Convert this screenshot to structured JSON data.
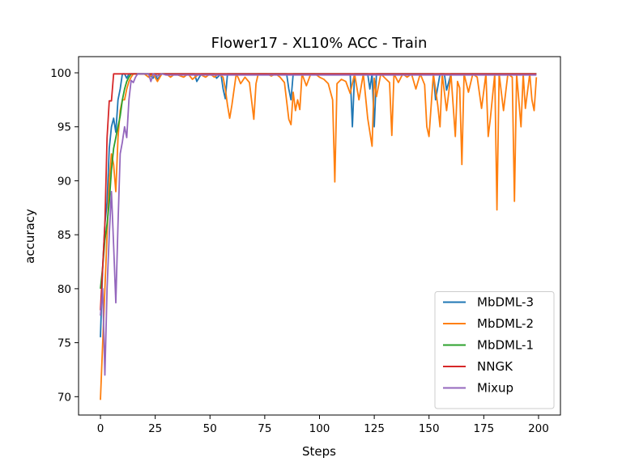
{
  "chart_data": {
    "type": "line",
    "title": "Flower17 - XL10% ACC - Train",
    "xlabel": "Steps",
    "ylabel": "accuracy",
    "xlim": [
      -10,
      210
    ],
    "ylim": [
      68.3,
      101.5
    ],
    "xticks": [
      0,
      25,
      50,
      75,
      100,
      125,
      150,
      175,
      200
    ],
    "yticks": [
      70,
      75,
      80,
      85,
      90,
      95,
      100
    ],
    "grid": false,
    "legend_position": "lower-right",
    "series": [
      {
        "name": "MbDML-3",
        "color": "#1f77b4",
        "x": [
          0,
          1,
          2,
          3,
          4,
          5,
          6,
          7,
          8,
          9,
          10,
          11,
          12,
          13,
          14,
          15,
          16,
          17,
          18,
          19,
          20,
          22,
          24,
          25,
          26,
          28,
          30,
          33,
          36,
          40,
          43,
          44,
          46,
          50,
          52,
          53,
          55,
          56,
          57,
          58,
          60,
          62,
          64,
          66,
          70,
          75,
          80,
          85,
          86,
          87,
          88,
          90,
          95,
          100,
          105,
          110,
          114,
          115,
          116,
          118,
          120,
          122,
          123,
          124,
          125,
          126,
          128,
          130,
          135,
          140,
          143,
          145,
          148,
          150,
          152,
          153,
          155,
          157,
          158,
          160,
          163,
          165,
          168,
          170,
          175,
          178,
          180,
          182,
          185,
          188,
          190,
          192,
          195,
          199
        ],
        "y": [
          75.5,
          82,
          86,
          88,
          93,
          95,
          95.8,
          94.5,
          97.5,
          98.5,
          99.9,
          99.9,
          99.5,
          99.9,
          99.9,
          99.9,
          99.9,
          99.9,
          99.9,
          99.9,
          99.9,
          99.9,
          99.5,
          99.9,
          99.4,
          99.9,
          99.9,
          99.9,
          99.9,
          99.9,
          99.9,
          99.2,
          99.9,
          99.9,
          99.9,
          99.5,
          99.9,
          98.5,
          97.6,
          99.9,
          99.9,
          99.9,
          99.9,
          99.9,
          99.9,
          99.9,
          99.9,
          99.9,
          98.5,
          97.5,
          99.9,
          99.9,
          99.9,
          99.9,
          99.9,
          99.9,
          99.9,
          95,
          99.9,
          99.9,
          99.9,
          99.9,
          98.5,
          99.9,
          95,
          99.9,
          99.9,
          99.9,
          99.9,
          99.9,
          99.9,
          99.9,
          99.9,
          99.9,
          99.9,
          97.5,
          99.9,
          99.9,
          98.4,
          99.9,
          99.9,
          99.9,
          99.9,
          99.9,
          99.9,
          99.9,
          99.9,
          99.9,
          99.9,
          99.9,
          99.9,
          99.9,
          99.9,
          99.9
        ]
      },
      {
        "name": "MbDML-2",
        "color": "#ff7f0e",
        "x": [
          0,
          1,
          2,
          3,
          4,
          5,
          6,
          7,
          8,
          9,
          10,
          11,
          12,
          13,
          14,
          15,
          16,
          17,
          18,
          19,
          20,
          22,
          24,
          26,
          28,
          30,
          32,
          34,
          38,
          40,
          42,
          45,
          48,
          50,
          52,
          54,
          56,
          57,
          58,
          59,
          60,
          62,
          63,
          64,
          66,
          68,
          70,
          71,
          72,
          74,
          76,
          78,
          80,
          82,
          84,
          86,
          87,
          88,
          89,
          90,
          91,
          92,
          94,
          96,
          98,
          100,
          102,
          104,
          106,
          107,
          108,
          110,
          112,
          114,
          116,
          118,
          120,
          122,
          124,
          125,
          126,
          128,
          130,
          132,
          133,
          134,
          136,
          138,
          140,
          142,
          144,
          146,
          148,
          149,
          150,
          152,
          154,
          155,
          156,
          158,
          160,
          162,
          163,
          164,
          165,
          166,
          168,
          170,
          172,
          174,
          176,
          177,
          178,
          180,
          181,
          182,
          184,
          186,
          188,
          189,
          190,
          192,
          193,
          194,
          196,
          197,
          198,
          199
        ],
        "y": [
          69.7,
          75,
          80,
          85,
          90,
          92.5,
          91.5,
          89,
          94,
          96.5,
          97.5,
          97.5,
          98.5,
          99.2,
          99.6,
          99.9,
          99.9,
          99.9,
          99.9,
          99.9,
          99.9,
          99.6,
          99.9,
          99.2,
          99.9,
          99.9,
          99.6,
          99.9,
          99.6,
          99.9,
          99.4,
          99.9,
          99.6,
          99.9,
          99.6,
          99.9,
          99.6,
          98.5,
          97,
          95.8,
          97,
          99.9,
          99.5,
          99,
          99.6,
          99.1,
          95.7,
          99,
          99.9,
          99.9,
          99.9,
          99.7,
          99.9,
          99.6,
          99.1,
          95.7,
          95.2,
          98.2,
          96.5,
          97.5,
          96.6,
          99.9,
          98.8,
          99.9,
          99.9,
          99.6,
          99.4,
          99,
          97.5,
          89.9,
          99,
          99.4,
          99.2,
          98.1,
          99.9,
          97.5,
          99.9,
          95.8,
          93.2,
          99.5,
          97.8,
          99.9,
          99.5,
          99.1,
          94.2,
          99.9,
          99.1,
          99.9,
          99.6,
          99.9,
          98.5,
          99.9,
          98.9,
          95,
          94.1,
          99.9,
          97,
          95,
          99.9,
          96.5,
          99.9,
          94.1,
          99.2,
          98.6,
          91.5,
          99.9,
          98.2,
          99.9,
          99.6,
          96.7,
          99.9,
          94.1,
          95.8,
          99.9,
          87.3,
          99.9,
          96.5,
          99.9,
          99.6,
          88.1,
          99.9,
          95,
          99.9,
          96.7,
          99.9,
          97.5,
          96.5,
          99.6
        ]
      },
      {
        "name": "MbDML-1",
        "color": "#2ca02c",
        "x": [
          0,
          1,
          2,
          3,
          4,
          5,
          6,
          7,
          8,
          9,
          10,
          11,
          12,
          13,
          14,
          15,
          16,
          20,
          30,
          50,
          100,
          150,
          199
        ],
        "y": [
          80,
          82,
          84.5,
          86,
          88,
          91,
          93,
          94,
          95,
          96,
          97.5,
          98.5,
          99.2,
          99.6,
          99.9,
          99.9,
          99.9,
          99.9,
          99.9,
          99.9,
          99.9,
          99.9,
          99.9
        ]
      },
      {
        "name": "NNGK",
        "color": "#d62728",
        "x": [
          0,
          1,
          2,
          3,
          4,
          5,
          6,
          7,
          8,
          9,
          10,
          11,
          12,
          13,
          14,
          15,
          20,
          50,
          100,
          150,
          199
        ],
        "y": [
          78,
          82,
          86,
          94,
          97.4,
          97.4,
          99.9,
          99.9,
          99.9,
          99.9,
          99.9,
          99.9,
          99.9,
          99.9,
          99.9,
          99.9,
          99.9,
          99.9,
          99.9,
          99.9,
          99.9
        ]
      },
      {
        "name": "Mixup",
        "color": "#9467bd",
        "x": [
          0,
          1,
          2,
          3,
          4,
          5,
          6,
          7,
          8,
          9,
          10,
          11,
          12,
          13,
          14,
          15,
          16,
          17,
          18,
          20,
          22,
          23,
          24,
          26,
          28,
          30,
          35,
          40,
          50,
          60,
          70,
          80,
          90,
          100,
          110,
          120,
          130,
          140,
          150,
          160,
          170,
          180,
          190,
          199
        ],
        "y": [
          77.5,
          80,
          72,
          80,
          85,
          89,
          84,
          78.7,
          86,
          92.5,
          93.6,
          95,
          94,
          97.5,
          99.3,
          99.1,
          99.6,
          99.9,
          99.9,
          99.9,
          99.9,
          99.2,
          99.9,
          99.7,
          99.9,
          99.8,
          99.8,
          99.8,
          99.8,
          99.8,
          99.8,
          99.8,
          99.8,
          99.8,
          99.8,
          99.8,
          99.8,
          99.8,
          99.8,
          99.8,
          99.8,
          99.8,
          99.8,
          99.8
        ]
      }
    ]
  }
}
